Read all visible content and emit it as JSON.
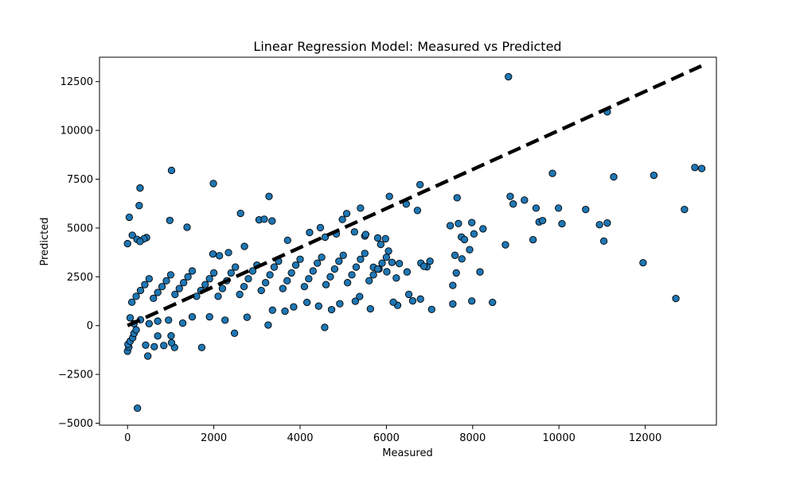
{
  "chart_data": {
    "type": "scatter",
    "title": "Linear Regression Model: Measured vs Predicted",
    "xlabel": "Measured",
    "ylabel": "Predicted",
    "xlim": [
      -650,
      13650
    ],
    "ylim": [
      -5100,
      13750
    ],
    "xticks": [
      0,
      2000,
      4000,
      6000,
      8000,
      10000,
      12000
    ],
    "xtick_labels": [
      "0",
      "2000",
      "4000",
      "6000",
      "8000",
      "10000",
      "12000"
    ],
    "yticks": [
      -5000,
      -2500,
      0,
      2500,
      5000,
      7500,
      10000,
      12500
    ],
    "yticks_labels": [
      "−5000",
      "−2500",
      "0",
      "2500",
      "5000",
      "7500",
      "10000",
      "12500"
    ],
    "grid": false,
    "marker_color": "#1f77b4",
    "marker_edge_color": "#000000",
    "reference_line": {
      "style": "dashed",
      "color": "#000000",
      "x": [
        0,
        13300
      ],
      "y": [
        0,
        13300
      ]
    },
    "series": [
      {
        "points": [
          [
            8830,
            12750
          ],
          [
            11120,
            10950
          ],
          [
            1020,
            7950
          ],
          [
            1990,
            7280
          ],
          [
            290,
            7050
          ],
          [
            3280,
            6620
          ],
          [
            6780,
            7220
          ],
          [
            9850,
            7800
          ],
          [
            12200,
            7700
          ],
          [
            11270,
            7620
          ],
          [
            13150,
            8100
          ],
          [
            13310,
            8050
          ],
          [
            270,
            6150
          ],
          [
            2620,
            5750
          ],
          [
            3050,
            5420
          ],
          [
            5400,
            6020
          ],
          [
            6070,
            6620
          ],
          [
            6460,
            6230
          ],
          [
            6720,
            5900
          ],
          [
            7640,
            6550
          ],
          [
            8870,
            6620
          ],
          [
            9200,
            6430
          ],
          [
            9470,
            6020
          ],
          [
            9990,
            6020
          ],
          [
            10620,
            5950
          ],
          [
            12910,
            5950
          ],
          [
            8940,
            6230
          ],
          [
            9540,
            5310
          ],
          [
            9620,
            5380
          ],
          [
            10070,
            5220
          ],
          [
            10940,
            5170
          ],
          [
            11120,
            5260
          ],
          [
            11040,
            4330
          ],
          [
            9400,
            4400
          ],
          [
            8760,
            4140
          ],
          [
            7980,
            5280
          ],
          [
            8240,
            4960
          ],
          [
            7670,
            5230
          ],
          [
            7480,
            5120
          ],
          [
            7740,
            4540
          ],
          [
            7810,
            4410
          ],
          [
            8030,
            4700
          ],
          [
            8170,
            2750
          ],
          [
            7930,
            3890
          ],
          [
            7750,
            3420
          ],
          [
            7590,
            3600
          ],
          [
            7620,
            2700
          ],
          [
            7540,
            2060
          ],
          [
            11950,
            3220
          ],
          [
            12710,
            1390
          ],
          [
            8460,
            1190
          ],
          [
            7980,
            1260
          ],
          [
            7540,
            1110
          ],
          [
            7050,
            830
          ],
          [
            6790,
            1360
          ],
          [
            6610,
            1270
          ],
          [
            6520,
            1600
          ],
          [
            6260,
            1040
          ],
          [
            6160,
            1200
          ],
          [
            5630,
            860
          ],
          [
            4570,
            -90
          ],
          [
            2480,
            -390
          ],
          [
            1720,
            -1120
          ],
          [
            470,
            -1560
          ],
          [
            230,
            -4230
          ],
          [
            1090,
            -1120
          ],
          [
            1020,
            -880
          ],
          [
            840,
            -1020
          ],
          [
            620,
            -1080
          ],
          [
            420,
            -1000
          ],
          [
            0,
            -1310
          ],
          [
            30,
            -1100
          ],
          [
            10,
            -960
          ],
          [
            60,
            -800
          ],
          [
            120,
            -620
          ],
          [
            1010,
            -520
          ],
          [
            700,
            -530
          ],
          [
            150,
            -400
          ],
          [
            200,
            -220
          ],
          [
            40,
            5550
          ],
          [
            110,
            4630
          ],
          [
            440,
            4510
          ],
          [
            380,
            4450
          ],
          [
            220,
            4420
          ],
          [
            290,
            4310
          ],
          [
            0,
            4200
          ],
          [
            980,
            5390
          ],
          [
            1380,
            5040
          ],
          [
            1980,
            3670
          ],
          [
            2340,
            3740
          ],
          [
            2130,
            3580
          ],
          [
            2710,
            4060
          ],
          [
            3170,
            5450
          ],
          [
            3350,
            5360
          ],
          [
            3710,
            4370
          ],
          [
            4220,
            4770
          ],
          [
            4470,
            5020
          ],
          [
            4580,
            4530
          ],
          [
            4840,
            4700
          ],
          [
            4980,
            5440
          ],
          [
            5080,
            5740
          ],
          [
            5260,
            4800
          ],
          [
            5500,
            4590
          ],
          [
            5520,
            4670
          ],
          [
            5800,
            4490
          ],
          [
            5870,
            4160
          ],
          [
            5980,
            4450
          ],
          [
            6050,
            3820
          ],
          [
            6130,
            3240
          ],
          [
            6300,
            3180
          ],
          [
            5830,
            2900
          ],
          [
            5700,
            2990
          ],
          [
            6010,
            2760
          ],
          [
            6230,
            2440
          ],
          [
            6480,
            2750
          ],
          [
            6800,
            3200
          ],
          [
            6940,
            3010
          ],
          [
            7010,
            3300
          ],
          [
            6870,
            3040
          ],
          [
            5380,
            1490
          ],
          [
            5280,
            1250
          ],
          [
            4920,
            1120
          ],
          [
            4730,
            820
          ],
          [
            4430,
            1000
          ],
          [
            4160,
            1190
          ],
          [
            3850,
            960
          ],
          [
            3650,
            740
          ],
          [
            3360,
            790
          ],
          [
            3260,
            30
          ],
          [
            2770,
            430
          ],
          [
            2260,
            280
          ],
          [
            1900,
            450
          ],
          [
            1500,
            450
          ],
          [
            1280,
            130
          ],
          [
            950,
            280
          ],
          [
            700,
            230
          ],
          [
            500,
            100
          ],
          [
            300,
            300
          ],
          [
            150,
            100
          ],
          [
            60,
            400
          ],
          [
            100,
            1200
          ],
          [
            200,
            1500
          ],
          [
            300,
            1800
          ],
          [
            400,
            2100
          ],
          [
            500,
            2400
          ],
          [
            600,
            1400
          ],
          [
            700,
            1700
          ],
          [
            800,
            2000
          ],
          [
            900,
            2300
          ],
          [
            1000,
            2600
          ],
          [
            1100,
            1600
          ],
          [
            1200,
            1900
          ],
          [
            1300,
            2200
          ],
          [
            1400,
            2500
          ],
          [
            1500,
            2800
          ],
          [
            1600,
            1500
          ],
          [
            1700,
            1800
          ],
          [
            1800,
            2100
          ],
          [
            1900,
            2400
          ],
          [
            2000,
            2700
          ],
          [
            2100,
            1500
          ],
          [
            2200,
            1900
          ],
          [
            2300,
            2300
          ],
          [
            2400,
            2700
          ],
          [
            2500,
            3000
          ],
          [
            2600,
            1600
          ],
          [
            2700,
            2000
          ],
          [
            2800,
            2400
          ],
          [
            2900,
            2800
          ],
          [
            3000,
            3100
          ],
          [
            3100,
            1800
          ],
          [
            3200,
            2200
          ],
          [
            3300,
            2600
          ],
          [
            3400,
            3000
          ],
          [
            3500,
            3300
          ],
          [
            3600,
            1900
          ],
          [
            3700,
            2300
          ],
          [
            3800,
            2700
          ],
          [
            3900,
            3100
          ],
          [
            4000,
            3400
          ],
          [
            4100,
            2000
          ],
          [
            4200,
            2400
          ],
          [
            4300,
            2800
          ],
          [
            4400,
            3200
          ],
          [
            4500,
            3500
          ],
          [
            4600,
            2100
          ],
          [
            4700,
            2500
          ],
          [
            4800,
            2900
          ],
          [
            4900,
            3300
          ],
          [
            5000,
            3600
          ],
          [
            5100,
            2200
          ],
          [
            5200,
            2600
          ],
          [
            5300,
            3000
          ],
          [
            5400,
            3400
          ],
          [
            5500,
            3700
          ],
          [
            5600,
            2300
          ],
          [
            5700,
            2600
          ],
          [
            5800,
            2900
          ],
          [
            5900,
            3200
          ],
          [
            6000,
            3500
          ]
        ]
      }
    ]
  }
}
